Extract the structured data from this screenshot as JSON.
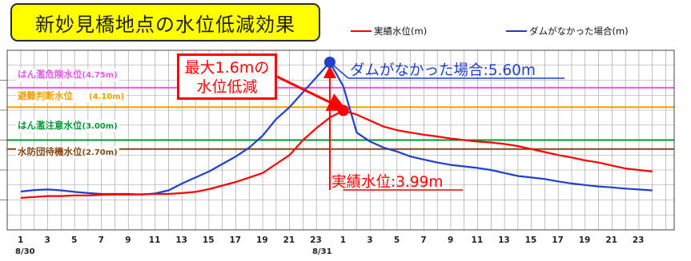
{
  "title": "新妙見橋地点の水位低減効果",
  "legend": [
    {
      "name": "実績水位(m)",
      "color": "#ff0000"
    },
    {
      "name": "ダムがなかった場合(m)",
      "color": "#1f3fcc"
    }
  ],
  "thresholds": [
    {
      "label": "はん濫危険水位",
      "value_text": "(4.75m)",
      "value": 4.75,
      "color": "#ee55ee"
    },
    {
      "label": "避難判断水位",
      "value_text": "(4.10m)",
      "value": 4.1,
      "color": "#f0a000"
    },
    {
      "label": "はん濫注意水位",
      "value_text": "(3.00m)",
      "value": 3.0,
      "color": "#009933"
    },
    {
      "label": "水防団待機水位",
      "value_text": "(2.70m)",
      "value": 2.7,
      "color": "#8b4513"
    }
  ],
  "callout": {
    "line1": "最大1.6mの",
    "line2": "水位低減"
  },
  "annotations": {
    "no_dam_peak": "ダムがなかった場合:5.60m",
    "actual_peak": "実績水位:3.99m"
  },
  "dates": [
    "8/30",
    "8/31"
  ],
  "chart_data": {
    "type": "line",
    "x_tick_labels": [
      "1",
      "3",
      "5",
      "7",
      "9",
      "11",
      "13",
      "15",
      "17",
      "19",
      "21",
      "23",
      "1",
      "3",
      "5",
      "7",
      "9",
      "11",
      "13",
      "15",
      "17",
      "19",
      "21",
      "23"
    ],
    "xlim": [
      0,
      48
    ],
    "ylim": [
      0,
      6
    ],
    "grid": true,
    "legend_position": "top-right",
    "series": [
      {
        "name": "実績水位(m)",
        "color": "#ff0000",
        "x": [
          0,
          1,
          2,
          3,
          4,
          5,
          6,
          7,
          8,
          9,
          10,
          11,
          12,
          13,
          14,
          15,
          16,
          17,
          18,
          19,
          20,
          21,
          22,
          23,
          24,
          25,
          26,
          27,
          28,
          29,
          30,
          31,
          32,
          33,
          34,
          35,
          36,
          37,
          38,
          39,
          40,
          41,
          42,
          43,
          44,
          45,
          46,
          47
        ],
        "values": [
          1.07,
          1.1,
          1.13,
          1.13,
          1.15,
          1.15,
          1.17,
          1.18,
          1.18,
          1.19,
          1.2,
          1.2,
          1.23,
          1.27,
          1.36,
          1.48,
          1.6,
          1.75,
          1.9,
          2.2,
          2.5,
          3.0,
          3.4,
          3.75,
          3.99,
          3.85,
          3.65,
          3.45,
          3.33,
          3.25,
          3.18,
          3.12,
          3.05,
          3.0,
          2.95,
          2.92,
          2.87,
          2.8,
          2.7,
          2.6,
          2.5,
          2.42,
          2.32,
          2.25,
          2.15,
          2.05,
          2.0,
          1.95
        ]
      },
      {
        "name": "ダムがなかった場合(m)",
        "color": "#1f3fcc",
        "x": [
          0,
          1,
          2,
          3,
          4,
          5,
          6,
          7,
          8,
          9,
          10,
          11,
          12,
          13,
          14,
          15,
          16,
          17,
          18,
          19,
          20,
          21,
          22,
          23,
          24,
          25,
          26,
          27,
          28,
          29,
          30,
          31,
          32,
          33,
          34,
          35,
          36,
          37,
          38,
          39,
          40,
          41,
          42,
          43,
          44,
          45,
          46,
          47
        ],
        "values": [
          1.28,
          1.33,
          1.35,
          1.32,
          1.27,
          1.23,
          1.2,
          1.2,
          1.2,
          1.18,
          1.22,
          1.32,
          1.55,
          1.75,
          1.95,
          2.2,
          2.45,
          2.75,
          3.15,
          3.7,
          4.1,
          4.6,
          5.1,
          5.6,
          4.8,
          3.25,
          2.95,
          2.75,
          2.62,
          2.45,
          2.35,
          2.25,
          2.17,
          2.12,
          2.07,
          2.0,
          1.9,
          1.8,
          1.75,
          1.7,
          1.62,
          1.55,
          1.5,
          1.45,
          1.42,
          1.38,
          1.35,
          1.32
        ]
      }
    ]
  }
}
